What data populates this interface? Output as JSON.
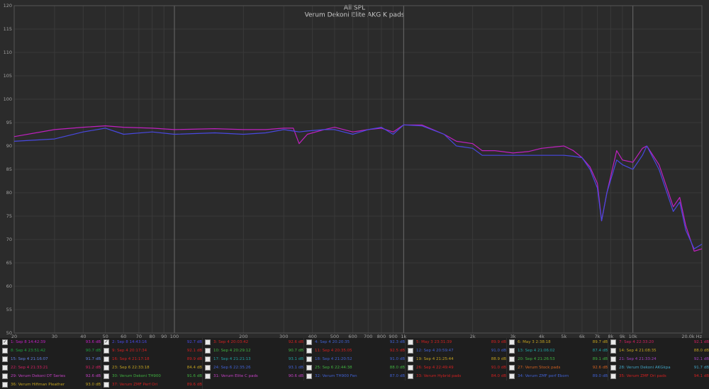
{
  "chart_data": {
    "type": "line",
    "title": "All SPL",
    "subtitle": "Verum Dekoni Elite AKG K pads",
    "xscale": "log",
    "grid": true,
    "xlim": [
      20,
      20000
    ],
    "ylim": [
      50,
      120
    ],
    "yticks": [
      50,
      55,
      60,
      65,
      70,
      75,
      80,
      85,
      90,
      95,
      100,
      105,
      110,
      115,
      120
    ],
    "xticks": [
      20,
      30,
      40,
      50,
      60,
      70,
      80,
      90,
      100,
      200,
      300,
      400,
      500,
      600,
      700,
      800,
      900,
      {
        "value": 1000,
        "label": "1k"
      },
      {
        "value": 2000,
        "label": "2k"
      },
      {
        "value": 3000,
        "label": "3k"
      },
      {
        "value": 4000,
        "label": "4k"
      },
      {
        "value": 5000,
        "label": "5k"
      },
      {
        "value": 6000,
        "label": "6k"
      },
      {
        "value": 7000,
        "label": "7k"
      },
      {
        "value": 8000,
        "label": "8k"
      },
      {
        "value": 9000,
        "label": "9k"
      },
      {
        "value": 10000,
        "label": "10k"
      },
      {
        "value": 20000,
        "label": "20.0k Hz"
      }
    ],
    "x": [
      20,
      30,
      40,
      50,
      60,
      80,
      100,
      150,
      200,
      250,
      300,
      330,
      350,
      380,
      450,
      500,
      600,
      700,
      800,
      900,
      1000,
      1200,
      1500,
      1700,
      2000,
      2200,
      2500,
      3000,
      3500,
      4000,
      5000,
      5500,
      6000,
      6500,
      7000,
      7300,
      7700,
      8500,
      9000,
      10000,
      11000,
      11500,
      13000,
      15000,
      16000,
      17000,
      18500,
      20000
    ],
    "series": [
      {
        "name": "1: Sep 8 14:42:39",
        "color": "#c020c0",
        "values": [
          92,
          93.5,
          94,
          94.3,
          94,
          93.8,
          93.5,
          93.7,
          93.5,
          93.5,
          93.8,
          93.8,
          90.5,
          92.5,
          93.5,
          94,
          93,
          93.5,
          93.8,
          93,
          94.5,
          94.5,
          92.5,
          91,
          90.5,
          89,
          89,
          88.5,
          88.8,
          89.5,
          90,
          89,
          87.5,
          85.5,
          82,
          74,
          80,
          89,
          87,
          86.5,
          89.5,
          90,
          86,
          77,
          79,
          73,
          67.5,
          68
        ]
      },
      {
        "name": "2: Sep 8 14:43:16",
        "color": "#4848e0",
        "values": [
          91,
          91.5,
          93,
          93.8,
          92.5,
          93,
          92.5,
          92.8,
          92.5,
          92.8,
          93.5,
          93.2,
          93,
          93.2,
          93.5,
          93.5,
          92.5,
          93.5,
          94,
          92.5,
          94.5,
          94.3,
          92.5,
          90,
          89.5,
          88,
          88,
          88,
          88,
          88,
          88,
          87.8,
          87.5,
          85,
          81,
          74,
          80,
          87,
          86,
          85,
          88,
          90,
          85,
          76,
          78,
          72,
          68,
          69
        ]
      }
    ]
  },
  "legend": [
    {
      "name": "1: Sep 8 14:42:39",
      "level": "93.6 dB",
      "color": "#c020c0",
      "checked": true
    },
    {
      "name": "2: Sep 8 14:43:16",
      "level": "92.7 dB",
      "color": "#4848e0",
      "checked": true
    },
    {
      "name": "3: Sep 4 20:03:42",
      "level": "92.6 dB",
      "color": "#d02020",
      "checked": false
    },
    {
      "name": "4: Sep 4 20:20:35",
      "level": "92.3 dB",
      "color": "#4060d0",
      "checked": false
    },
    {
      "name": "5: May 3 23:31:39",
      "level": "89.9 dB",
      "color": "#d02020",
      "checked": false
    },
    {
      "name": "6: May 3 2:38:18",
      "level": "89.7 dB",
      "color": "#c0a020",
      "checked": false
    },
    {
      "name": "7: Sep 4 22:33:20",
      "level": "92.1 dB",
      "color": "#d02060",
      "checked": false
    },
    {
      "name": "8: Sep 4 23:51:42",
      "level": "90.7 dB",
      "color": "#20a040",
      "checked": false
    },
    {
      "name": "9: Sep 4 20:17:34",
      "level": "92.1 dB",
      "color": "#d02020",
      "checked": false
    },
    {
      "name": "10: Sep 4 20:29:12",
      "level": "90.7 dB",
      "color": "#40b040",
      "checked": false
    },
    {
      "name": "11: Sep 4 20:35:05",
      "level": "92.5 dB",
      "color": "#d02020",
      "checked": false
    },
    {
      "name": "12: Sep 4 20:59:47",
      "level": "91.0 dB",
      "color": "#4060d0",
      "checked": false
    },
    {
      "name": "13: Sep 4 21:06:02",
      "level": "87.4 dB",
      "color": "#20a0a0",
      "checked": false
    },
    {
      "name": "14: Sep 4 21:08:35",
      "level": "88.0 dB",
      "color": "#c0a020",
      "checked": false
    },
    {
      "name": "15: Sep 4 21:16:07",
      "level": "91.7 dB",
      "color": "#6080e0",
      "checked": false
    },
    {
      "name": "16: Sep 4 21:17:18",
      "level": "89.9 dB",
      "color": "#d02020",
      "checked": false
    },
    {
      "name": "17: Sep 4 21:21:13",
      "level": "93.1 dB",
      "color": "#20a0a0",
      "checked": false
    },
    {
      "name": "18: Sep 4 21:20:52",
      "level": "91.0 dB",
      "color": "#4060d0",
      "checked": false
    },
    {
      "name": "19: Sep 4 21:25:44",
      "level": "88.9 dB",
      "color": "#c0a020",
      "checked": false
    },
    {
      "name": "20: Sep 4 21:26:53",
      "level": "89.1 dB",
      "color": "#40b040",
      "checked": false
    },
    {
      "name": "21: Sep 4 21:33:24",
      "level": "92.1 dB",
      "color": "#a040c0",
      "checked": false
    },
    {
      "name": "22: Sep 4 21:33:21",
      "level": "91.2 dB",
      "color": "#d02060",
      "checked": false
    },
    {
      "name": "23: Sep 6 22:33:18",
      "level": "84.4 dB",
      "color": "#c0a020",
      "checked": false
    },
    {
      "name": "24: Sep 6 22:35:26",
      "level": "93.1 dB",
      "color": "#4060d0",
      "checked": false
    },
    {
      "name": "25: Sep 6 22:44:38",
      "level": "88.0 dB",
      "color": "#40b040",
      "checked": false
    },
    {
      "name": "26: Sep 4 22:49:49",
      "level": "91.0 dB",
      "color": "#d02020",
      "checked": false
    },
    {
      "name": "27: Verum Stock pads",
      "level": "92.6 dB",
      "color": "#d06020",
      "checked": false
    },
    {
      "name": "28: Verum Dekoni AKGkpa",
      "level": "91.7 dB",
      "color": "#40a0c0",
      "checked": false
    },
    {
      "name": "29: Verum Dekoni DT Series",
      "level": "92.6 dB",
      "color": "#c040c0",
      "checked": false
    },
    {
      "name": "30: Verum Dekoni TH900",
      "level": "91.6 dB",
      "color": "#40b040",
      "checked": false
    },
    {
      "name": "31: Verum Elite C pads",
      "level": "90.6 dB",
      "color": "#c040c0",
      "checked": false
    },
    {
      "name": "32: Verum TH900 Fen",
      "level": "87.0 dB",
      "color": "#4060d0",
      "checked": false
    },
    {
      "name": "33: Verum Hybrid pads",
      "level": "84.0 dB",
      "color": "#d02020",
      "checked": false
    },
    {
      "name": "34: Verum ZMF perf Eborn",
      "level": "89.0 dB",
      "color": "#4060d0",
      "checked": false
    },
    {
      "name": "35: Verum ZMF Ori pads",
      "level": "94.1 dB",
      "color": "#d02020",
      "checked": false
    },
    {
      "name": "36: Verum Hifiman Pleather",
      "level": "93.0 dB",
      "color": "#c0a020",
      "checked": false
    },
    {
      "name": "37: Verum ZMF Perf Ori",
      "level": "89.6 dB",
      "color": "#d02020",
      "checked": false
    }
  ]
}
